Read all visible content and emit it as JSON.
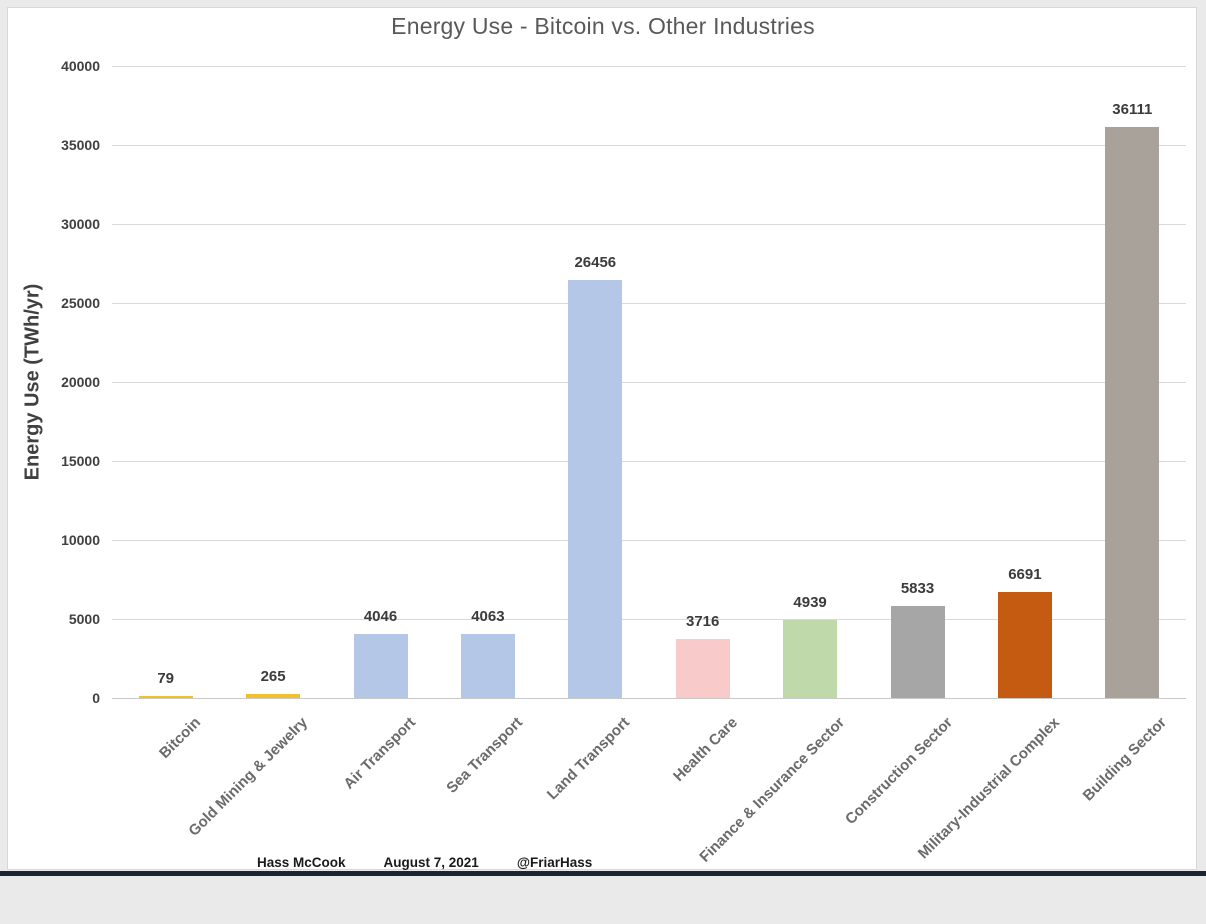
{
  "title": "Energy Use - Bitcoin vs. Other Industries",
  "footer": {
    "author": "Hass McCook",
    "date": "August 7, 2021",
    "handle": "@FriarHass"
  },
  "chart_data": {
    "type": "bar",
    "title": "Energy Use - Bitcoin vs. Other Industries",
    "xlabel": "",
    "ylabel": "Energy Use (TWh/yr)",
    "categories": [
      "Bitcoin",
      "Gold Mining & Jewelry",
      "Air Transport",
      "Sea Transport",
      "Land Transport",
      "Health Care",
      "Finance & Insurance Sector",
      "Construction Sector",
      "Military-Industrial Complex",
      "Building Sector"
    ],
    "values": [
      79,
      265,
      4046,
      4063,
      26456,
      3716,
      4939,
      5833,
      6691,
      36111
    ],
    "bar_colors": [
      "#f2c02c",
      "#f2c02c",
      "#b4c7e7",
      "#b4c7e7",
      "#b4c7e7",
      "#f8cbca",
      "#bfd9ab",
      "#a6a6a6",
      "#c55a11",
      "#a8a29b"
    ],
    "ylim": [
      0,
      40000
    ],
    "yticks": [
      0,
      5000,
      10000,
      15000,
      20000,
      25000,
      30000,
      35000,
      40000
    ],
    "grid": true,
    "legend": false,
    "data_labels": true,
    "category_label_rotation_deg": -45
  },
  "colors": {
    "title_text": "#595959",
    "axis_text": "#404040",
    "category_text": "#6a6a6a",
    "gridline": "#d9d9d9",
    "panel_background": "#ffffff",
    "page_background": "#eaeaea",
    "bottom_strip": "#1b2632"
  }
}
